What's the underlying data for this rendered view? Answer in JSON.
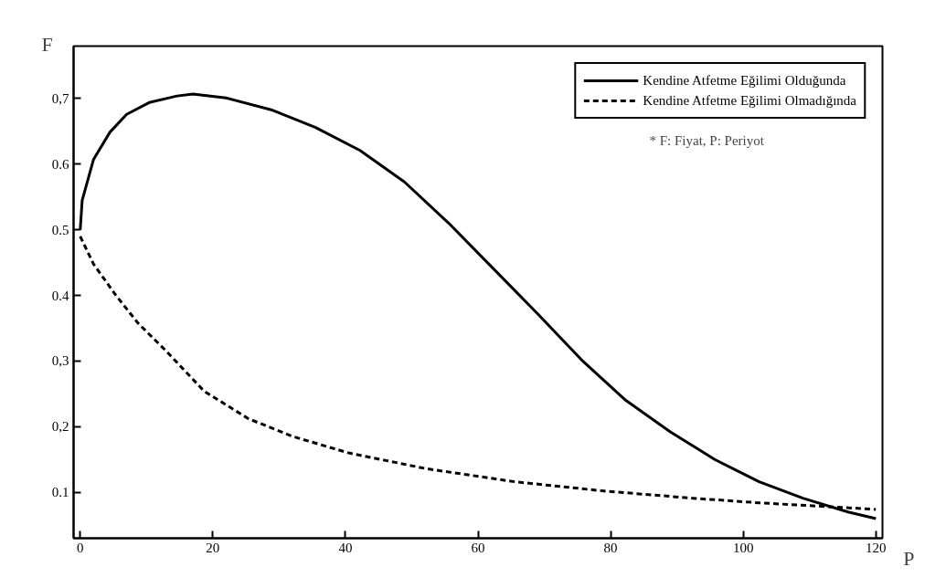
{
  "chart_data": {
    "type": "line",
    "xlabel": "P",
    "ylabel": "F",
    "x": [
      0,
      0.3,
      2,
      4.5,
      7,
      10.4,
      14.6,
      17,
      22,
      28.8,
      35.5,
      42.2,
      48.9,
      55.6,
      62.3,
      69,
      75.6,
      82.3,
      89,
      95.7,
      102.4,
      109,
      115.8,
      120
    ],
    "series": [
      {
        "name": "Kendine Atfetme Eğilimi Olduğunda",
        "color": "#000000",
        "line_style": "solid",
        "values": [
          0.5,
          0.545,
          0.607,
          0.649,
          0.676,
          0.694,
          0.704,
          0.707,
          0.701,
          0.683,
          0.656,
          0.621,
          0.573,
          0.51,
          0.441,
          0.372,
          0.302,
          0.24,
          0.192,
          0.15,
          0.116,
          0.091,
          0.07,
          0.06
        ]
      },
      {
        "name": "Kendine Atfetme Eğilimi Olmadığında",
        "color": "#000000",
        "line_style": "dashed",
        "x": [
          0,
          2,
          5.4,
          8.7,
          12.9,
          18.7,
          25.4,
          32.1,
          40.5,
          52.2,
          65.6,
          79,
          92.4,
          102.4,
          120
        ],
        "values": [
          0.49,
          0.448,
          0.4,
          0.358,
          0.316,
          0.254,
          0.212,
          0.185,
          0.16,
          0.136,
          0.116,
          0.102,
          0.091,
          0.084,
          0.074
        ]
      }
    ],
    "annotations": [
      "* F: Fiyat, P: Periyot"
    ],
    "xlim": [
      -1,
      121
    ],
    "ylim": [
      0.03,
      0.78
    ],
    "xticks": [
      0,
      20,
      40,
      60,
      80,
      100,
      120
    ],
    "yticks": [
      {
        "value": 0.1,
        "label": "0.1"
      },
      {
        "value": 0.2,
        "label": "0,2"
      },
      {
        "value": 0.3,
        "label": "0,3"
      },
      {
        "value": 0.4,
        "label": "0.4"
      },
      {
        "value": 0.5,
        "label": "0.5"
      },
      {
        "value": 0.6,
        "label": "0.6"
      },
      {
        "value": 0.7,
        "label": "0,7"
      }
    ],
    "grid": false,
    "legend": "top right",
    "marker": "none"
  }
}
